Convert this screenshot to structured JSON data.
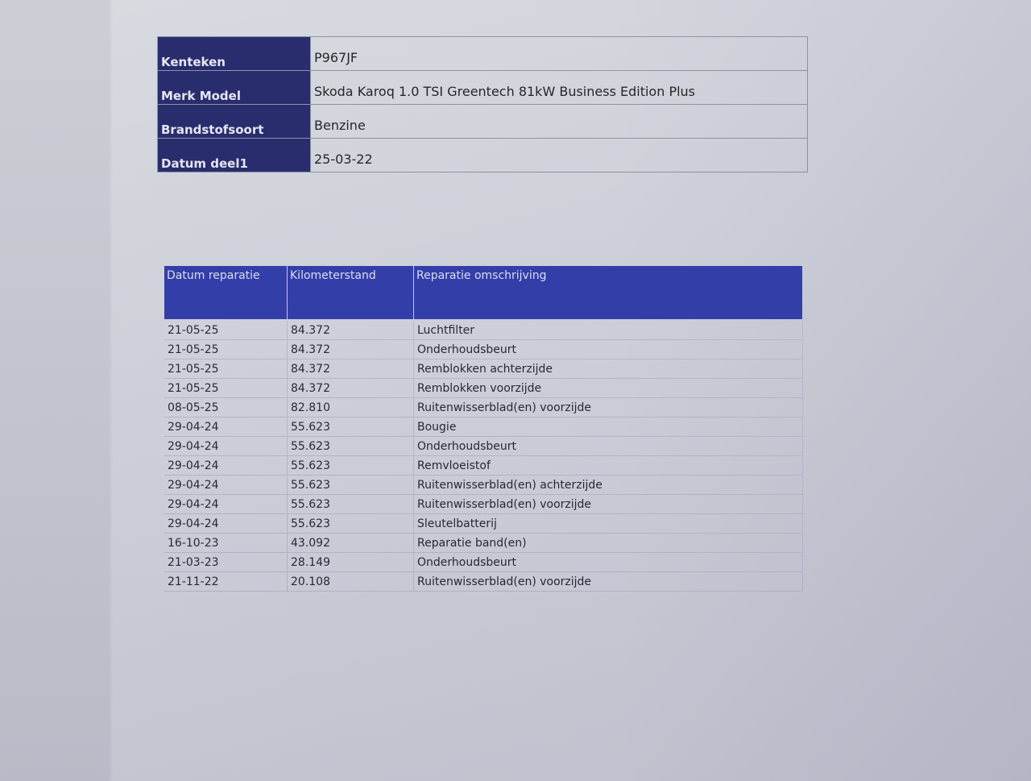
{
  "vehicle": [
    {
      "label": "Kenteken",
      "value": "P967JF"
    },
    {
      "label": "Merk Model",
      "value": "Skoda Karoq 1.0 TSI Greentech 81kW Business Edition Plus"
    },
    {
      "label": "Brandstofsoort",
      "value": "Benzine"
    },
    {
      "label": "Datum deel1",
      "value": "25-03-22"
    }
  ],
  "repairs": {
    "headers": [
      "Datum reparatie",
      "Kilometerstand",
      "Reparatie omschrijving"
    ],
    "rows": [
      [
        "21-05-25",
        "84.372",
        "Luchtfilter"
      ],
      [
        "21-05-25",
        "84.372",
        "Onderhoudsbeurt"
      ],
      [
        "21-05-25",
        "84.372",
        "Remblokken achterzijde"
      ],
      [
        "21-05-25",
        "84.372",
        "Remblokken voorzijde"
      ],
      [
        "08-05-25",
        "82.810",
        "Ruitenwisserblad(en) voorzijde"
      ],
      [
        "29-04-24",
        "55.623",
        "Bougie"
      ],
      [
        "29-04-24",
        "55.623",
        "Onderhoudsbeurt"
      ],
      [
        "29-04-24",
        "55.623",
        "Remvloeistof"
      ],
      [
        "29-04-24",
        "55.623",
        "Ruitenwisserblad(en) achterzijde"
      ],
      [
        "29-04-24",
        "55.623",
        "Ruitenwisserblad(en) voorzijde"
      ],
      [
        "29-04-24",
        "55.623",
        "Sleutelbatterij"
      ],
      [
        "16-10-23",
        "43.092",
        "Reparatie band(en)"
      ],
      [
        "21-03-23",
        "28.149",
        "Onderhoudsbeurt"
      ],
      [
        "21-11-22",
        "20.108",
        "Ruitenwisserblad(en) voorzijde"
      ]
    ]
  },
  "colors": {
    "label_bg": "#1e2266",
    "header_bg": "#2b36a8"
  }
}
